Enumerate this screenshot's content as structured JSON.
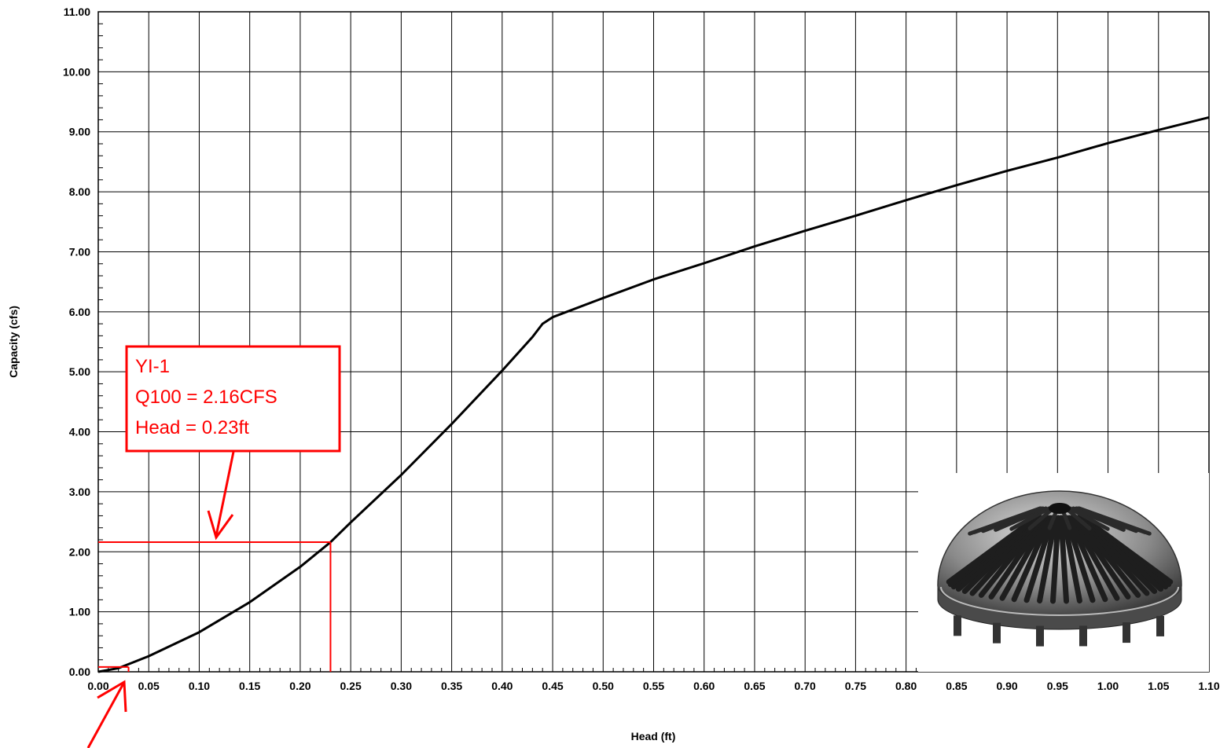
{
  "chart_data": {
    "type": "line",
    "title": "",
    "xlabel": "Head (ft)",
    "ylabel": "Capacity (cfs)",
    "xlim": [
      0,
      1.1
    ],
    "ylim": [
      0,
      11
    ],
    "x_ticks": [
      "0.00",
      "0.05",
      "0.10",
      "0.15",
      "0.20",
      "0.25",
      "0.30",
      "0.35",
      "0.40",
      "0.45",
      "0.50",
      "0.55",
      "0.60",
      "0.65",
      "0.70",
      "0.75",
      "0.80",
      "0.85",
      "0.90",
      "0.95",
      "1.00",
      "1.05",
      "1.10"
    ],
    "y_ticks": [
      "0.00",
      "1.00",
      "2.00",
      "3.00",
      "4.00",
      "5.00",
      "6.00",
      "7.00",
      "8.00",
      "9.00",
      "10.00",
      "11.00"
    ],
    "grid": true,
    "series": [
      {
        "x": [
          0,
          0.02,
          0.05,
          0.1,
          0.15,
          0.2,
          0.23,
          0.25,
          0.3,
          0.35,
          0.4,
          0.43,
          0.44,
          0.45,
          0.5,
          0.55,
          0.6,
          0.65,
          0.7,
          0.75,
          0.8,
          0.85,
          0.9,
          0.95,
          1.0,
          1.05,
          1.1
        ],
        "y": [
          0,
          0.06,
          0.26,
          0.66,
          1.16,
          1.75,
          2.16,
          2.49,
          3.28,
          4.13,
          5.02,
          5.58,
          5.8,
          5.91,
          6.23,
          6.54,
          6.81,
          7.09,
          7.35,
          7.6,
          7.86,
          8.11,
          8.35,
          8.57,
          8.81,
          9.03,
          9.24
        ],
        "color": "#000000"
      }
    ],
    "annotations": {
      "box_lines": [
        "YI-1",
        "Q100 = 2.16CFS",
        "Head = 0.23ft"
      ],
      "marker_point": {
        "x": 0.23,
        "y": 2.16
      },
      "small_marker_point": {
        "x": 0.03,
        "y": 0.08
      },
      "color": "#ff0000"
    },
    "inset_image": "roof-drain-dome-grate"
  }
}
